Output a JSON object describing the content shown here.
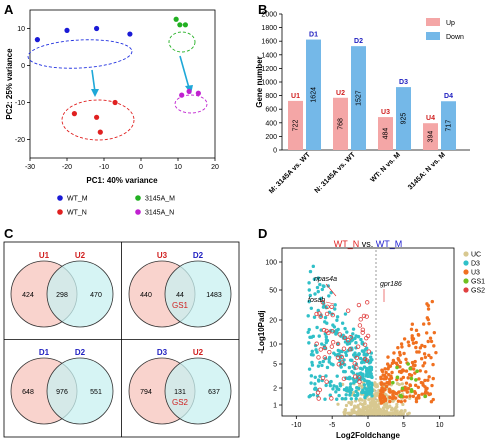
{
  "panels": {
    "A": "A",
    "B": "B",
    "C": "C",
    "D": "D"
  },
  "chart_data": [
    {
      "panel": "A",
      "type": "scatter",
      "xlabel": "PC1: 40% variance",
      "ylabel": "PC2: 25% variance",
      "xlim": [
        -30,
        20
      ],
      "ylim": [
        -25,
        15
      ],
      "xticks": [
        "-30",
        "-20",
        "-10",
        "0",
        "10",
        "20"
      ],
      "yticks": [
        "-20",
        "-10",
        "0",
        "10"
      ],
      "series": [
        {
          "name": "WT_M",
          "color": "#1a1ad6",
          "points": [
            [
              -28,
              7
            ],
            [
              -20,
              9.5
            ],
            [
              -12,
              10
            ],
            [
              -3,
              8.5
            ]
          ]
        },
        {
          "name": "WT_N",
          "color": "#e02020",
          "points": [
            [
              -18,
              -13
            ],
            [
              -12,
              -14
            ],
            [
              -7,
              -10
            ],
            [
              -11,
              -18
            ]
          ]
        },
        {
          "name": "3145A_M",
          "color": "#22b022",
          "points": [
            [
              9.5,
              12.5
            ],
            [
              10.5,
              11
            ],
            [
              12,
              11
            ]
          ]
        },
        {
          "name": "3145A_N",
          "color": "#c020d0",
          "points": [
            [
              11,
              -8
            ],
            [
              13,
              -7
            ],
            [
              15.5,
              -7.5
            ]
          ]
        }
      ],
      "legend": [
        "WT_M",
        "WT_N",
        "3145A_M",
        "3145A_N"
      ]
    },
    {
      "panel": "B",
      "type": "bar",
      "ylabel": "Gene number",
      "ylim": [
        0,
        2000
      ],
      "yticks": [
        "0",
        "200",
        "400",
        "600",
        "800",
        "1000",
        "1200",
        "1400",
        "1600",
        "1800",
        "2000"
      ],
      "categories": [
        "M: 3145A vs. WT",
        "N: 3145A vs. WT",
        "WT: N vs. M",
        "3145A: N vs. M"
      ],
      "series": [
        {
          "name": "Up",
          "color": "#f4a6a6",
          "values": [
            722,
            768,
            484,
            394
          ],
          "labels": [
            "U1",
            "U2",
            "U3",
            "U4"
          ]
        },
        {
          "name": "Down",
          "color": "#74b8e8",
          "values": [
            1624,
            1527,
            925,
            717
          ],
          "labels": [
            "D1",
            "D2",
            "D3",
            "D4"
          ]
        }
      ]
    },
    {
      "panel": "C",
      "type": "venn",
      "diagrams": [
        {
          "left_label": "U1",
          "right_label": "U2",
          "left_color": "#d02020",
          "right_color": "#d02020",
          "left_only": "424",
          "both": "298",
          "right_only": "470",
          "gs": ""
        },
        {
          "left_label": "U3",
          "right_label": "D2",
          "left_color": "#d02020",
          "right_color": "#2020c0",
          "left_only": "440",
          "both": "44",
          "right_only": "1483",
          "gs": "GS1"
        },
        {
          "left_label": "D1",
          "right_label": "D2",
          "left_color": "#2020c0",
          "right_color": "#2020c0",
          "left_only": "648",
          "both": "976",
          "right_only": "551",
          "gs": ""
        },
        {
          "left_label": "D3",
          "right_label": "U2",
          "left_color": "#2020c0",
          "right_color": "#d02020",
          "left_only": "794",
          "both": "131",
          "right_only": "637",
          "gs": "GS2"
        }
      ]
    },
    {
      "panel": "D",
      "type": "scatter",
      "title_left": "WT_N",
      "title_mid": "vs.",
      "title_right": "WT_M",
      "xlabel": "Log2Foldchange",
      "ylabel": "-Log10Padj",
      "xticks": [
        "-10",
        "-5",
        "0",
        "5",
        "10"
      ],
      "yticks": [
        "1",
        "2",
        "5",
        "10",
        "20",
        "50",
        "100"
      ],
      "legend": [
        {
          "name": "UC",
          "color": "#d8c890"
        },
        {
          "name": "D3",
          "color": "#30c0c8"
        },
        {
          "name": "U3",
          "color": "#f07020"
        },
        {
          "name": "GS1",
          "color": "#70c020"
        },
        {
          "name": "GS2",
          "color": "#e04040"
        }
      ],
      "annotations": [
        "npas4a",
        "fosab",
        "gpr186"
      ]
    }
  ]
}
